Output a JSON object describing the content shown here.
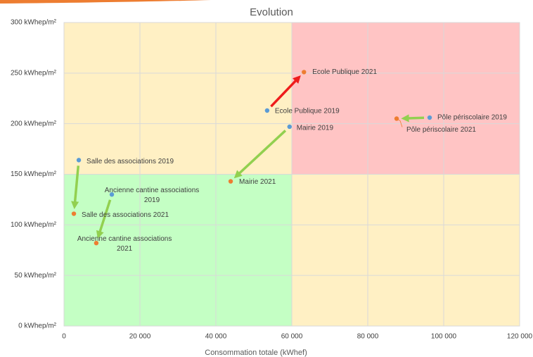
{
  "chart_data": {
    "type": "scatter",
    "title": "Evolution",
    "x_label": "Consommation totale (kWhef)",
    "xlim": [
      0,
      120000
    ],
    "ylim": [
      0,
      300
    ],
    "xticks": [
      0,
      {
        "value": 20000,
        "label": "20 000"
      },
      {
        "value": 40000,
        "label": "40 000"
      },
      {
        "value": 60000,
        "label": "60 000"
      },
      {
        "value": 80000,
        "label": "80 000"
      },
      {
        "value": 100000,
        "label": "100 000"
      },
      {
        "value": 120000,
        "label": "120 000"
      }
    ],
    "yticks": [
      {
        "value": 0,
        "label": "0 kWhep/m²"
      },
      {
        "value": 50,
        "label": "50 kWhep/m²"
      },
      {
        "value": 100,
        "label": "100 kWhep/m²"
      },
      {
        "value": 150,
        "label": "150 kWhep/m²"
      },
      {
        "value": 200,
        "label": "200 kWhep/m²"
      },
      {
        "value": 250,
        "label": "250 kWhep/m²"
      },
      {
        "value": 300,
        "label": "300 kWhep/m²"
      }
    ],
    "grid": true,
    "quadrants": {
      "x_split": 60000,
      "y_split": 150,
      "top_left": "#fff0c4",
      "top_right": "#ffc4c4",
      "bottom_left": "#c4ffc4",
      "bottom_right": "#fff0c4"
    },
    "series": [
      {
        "color": "#5b9bd5",
        "x": [
          53500,
          59400,
          96300,
          3900,
          12600
        ],
        "values": [
          213,
          197,
          206,
          164,
          130
        ],
        "labels": [
          "Ecole Publique 2019",
          "Mairie 2019",
          "Pôle périscolaire 2019",
          "Salle des associations 2019",
          "Ancienne cantine associations 2019"
        ]
      },
      {
        "color": "#ed7d31",
        "x": [
          63200,
          43900,
          87600,
          2600,
          8500
        ],
        "values": [
          251,
          143,
          205,
          111,
          82
        ],
        "labels": [
          "Ecole Publique 2021",
          "Mairie 2021",
          "Pôle périscolaire 2021",
          "Salle des associations 2021",
          "Ancienne cantine associations 2021"
        ]
      }
    ],
    "arrow_colors": [
      "#ee1c1c",
      "#92d050",
      "#92d050",
      "#92d050",
      "#92d050"
    ]
  }
}
